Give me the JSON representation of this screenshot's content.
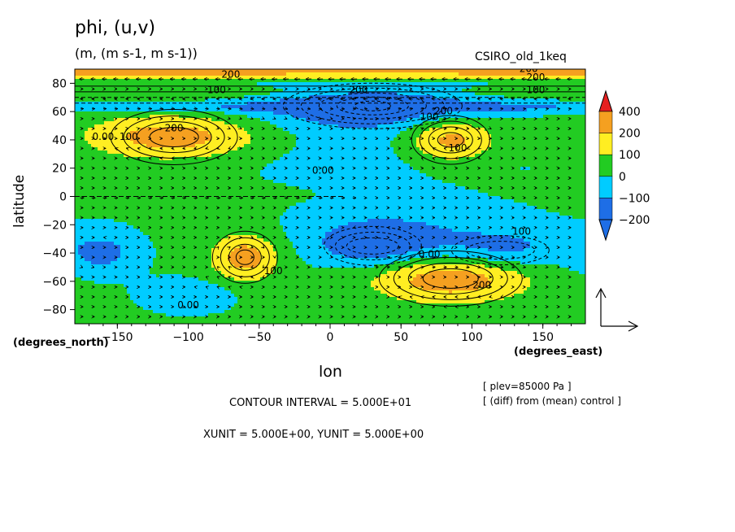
{
  "figure": {
    "title": "phi, (u,v)",
    "units": "(m, (m s-1, m s-1))",
    "model": "CSIRO_old_1keq",
    "x_unit_label": "(degrees_east)",
    "y_unit_label": "(degrees_north)",
    "plev_note": "[ plev=85000 Pa ]",
    "diff_note": "[ (diff) from (mean) control ]",
    "contour_interval": "CONTOUR INTERVAL = 5.000E+01",
    "xy_unit": "XUNIT = 5.000E+00, YUNIT = 5.000E+00"
  },
  "chart_data": {
    "type": "heatmap",
    "title": "phi, (u,v)",
    "xlabel": "lon",
    "ylabel": "latitude",
    "xlim": [
      -180,
      180
    ],
    "ylim": [
      -90,
      90
    ],
    "xticks": [
      -150,
      -100,
      -50,
      0,
      50,
      100,
      150
    ],
    "yticks": [
      -80,
      -60,
      -40,
      -20,
      0,
      20,
      40,
      60,
      80
    ],
    "colorbar": {
      "levels": [
        -200,
        -100,
        0,
        100,
        200,
        400
      ],
      "tick_labels": [
        "400",
        "200",
        "100",
        "0",
        "−100",
        "−200"
      ],
      "colors": [
        "#1e6ee6",
        "#00ccff",
        "#22cc22",
        "#ffee22",
        "#f5a020",
        "#e62020"
      ]
    },
    "features": [
      {
        "type": "high",
        "lon": -110,
        "lat": 42,
        "value": 250
      },
      {
        "type": "high",
        "lon": 85,
        "lat": 40,
        "value": 250
      },
      {
        "type": "high",
        "lon": -60,
        "lat": -43,
        "value": 250
      },
      {
        "type": "high",
        "lon": 85,
        "lat": -58,
        "value": 250
      },
      {
        "type": "low",
        "lon": 30,
        "lat": 64,
        "value": -250
      },
      {
        "type": "low",
        "lon": 30,
        "lat": -35,
        "value": -200
      },
      {
        "type": "low",
        "lon": -145,
        "lat": -40,
        "value": -150
      },
      {
        "type": "low",
        "lon": 120,
        "lat": -35,
        "value": -150
      }
    ],
    "contour_labels": [
      {
        "text": "200",
        "lon": -70,
        "lat": 84
      },
      {
        "text": "100",
        "lon": -80,
        "lat": 73
      },
      {
        "text": "200",
        "lon": 20,
        "lat": 73
      },
      {
        "text": "200",
        "lon": 140,
        "lat": 88
      },
      {
        "text": "200",
        "lon": 145,
        "lat": 82
      },
      {
        "text": "100",
        "lon": 145,
        "lat": 73
      },
      {
        "text": "0.00",
        "lon": -160,
        "lat": 40
      },
      {
        "text": "100",
        "lon": -142,
        "lat": 40
      },
      {
        "text": "200",
        "lon": -110,
        "lat": 46
      },
      {
        "text": "0.00",
        "lon": -5,
        "lat": 16
      },
      {
        "text": "100",
        "lon": 70,
        "lat": 54
      },
      {
        "text": "200",
        "lon": 80,
        "lat": 58
      },
      {
        "text": "100",
        "lon": 90,
        "lat": 32
      },
      {
        "text": "100",
        "lon": 135,
        "lat": -27
      },
      {
        "text": "0.00",
        "lon": 70,
        "lat": -43
      },
      {
        "text": "100",
        "lon": -40,
        "lat": -55
      },
      {
        "text": "200",
        "lon": 107,
        "lat": -65
      },
      {
        "text": "0.00",
        "lon": -100,
        "lat": -79
      }
    ],
    "vector_reference": {
      "x_unit": 5.0,
      "y_unit": 5.0
    }
  }
}
